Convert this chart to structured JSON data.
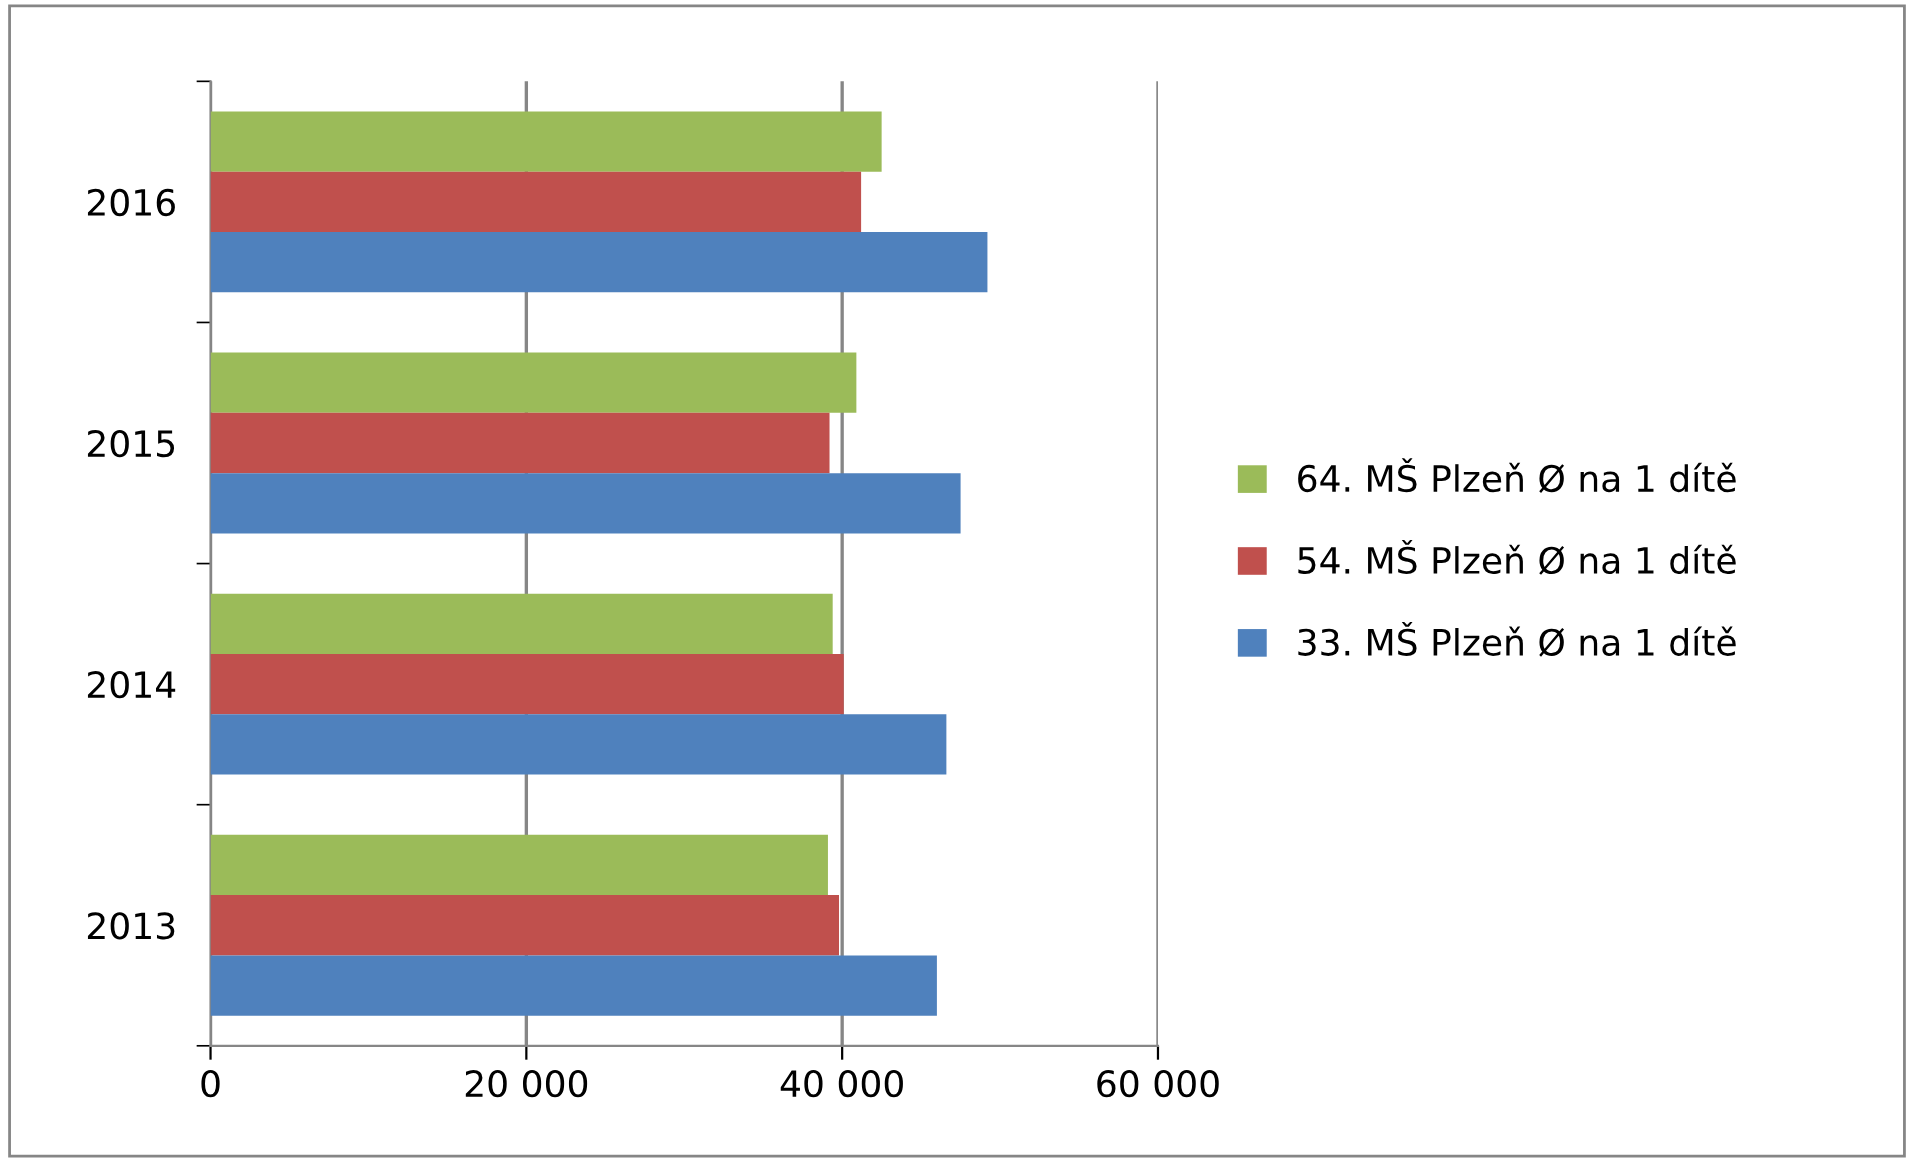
{
  "chart_data": {
    "type": "bar",
    "orientation": "horizontal",
    "categories": [
      "2016",
      "2015",
      "2014",
      "2013"
    ],
    "series": [
      {
        "name": "64. MŠ Plzeň Ø na 1 dítě",
        "color": "#9bbb59",
        "values": [
          42500,
          40900,
          39400,
          39100
        ]
      },
      {
        "name": "54. MŠ Plzeň Ø na 1 dítě",
        "color": "#c0504d",
        "values": [
          41200,
          39200,
          40100,
          39800
        ]
      },
      {
        "name": "33. MŠ Plzeň Ø na 1 dítě",
        "color": "#4f81bd",
        "values": [
          49200,
          47500,
          46600,
          46000
        ]
      }
    ],
    "xlim": [
      0,
      60000
    ],
    "xticks": [
      {
        "value": 0,
        "label": "0"
      },
      {
        "value": 20000,
        "label": "20 000"
      },
      {
        "value": 40000,
        "label": "40 000"
      },
      {
        "value": 60000,
        "label": "60 000"
      }
    ],
    "grid": "x",
    "legend": "right"
  }
}
